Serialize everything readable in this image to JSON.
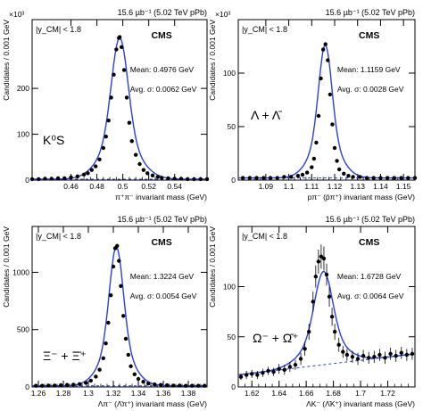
{
  "chart_data": [
    {
      "type": "scatter",
      "lumi_label": "15.6 µb⁻¹ (5.02 TeV pPb)",
      "cms_label": "CMS",
      "rapidity_label": "|y_CM| < 1.8",
      "particle_label": "K⁰S",
      "mean_label": "Mean: 0.4976 GeV",
      "sigma_label": "Avg. σ: 0.0062 GeV",
      "xlabel": "π⁺π⁻ invariant mass (GeV)",
      "ylabel": "Candidates / 0.001 GeV",
      "y_multiplier": "×10³",
      "xlim": [
        0.43,
        0.565
      ],
      "ylim": [
        0,
        350
      ],
      "x_ticks": [
        "0.46",
        "0.48",
        "0.5",
        "0.52",
        "0.54"
      ],
      "y_ticks": [
        "100",
        "200"
      ],
      "peak": {
        "mean": 0.4976,
        "sigma": 0.0062,
        "height": 310,
        "background": 2
      },
      "series": [
        {
          "name": "data",
          "x": [
            0.43,
            0.435,
            0.44,
            0.445,
            0.45,
            0.455,
            0.46,
            0.465,
            0.47,
            0.473,
            0.476,
            0.479,
            0.482,
            0.485,
            0.487,
            0.489,
            0.491,
            0.493,
            0.495,
            0.497,
            0.4976,
            0.499,
            0.501,
            0.503,
            0.505,
            0.507,
            0.51,
            0.513,
            0.516,
            0.519,
            0.523,
            0.527,
            0.53,
            0.535,
            0.54,
            0.545,
            0.55,
            0.555,
            0.56,
            0.565
          ],
          "y": [
            2,
            2,
            3,
            3,
            4,
            4,
            6,
            8,
            12,
            15,
            22,
            30,
            45,
            70,
            95,
            130,
            180,
            230,
            285,
            310,
            312,
            290,
            240,
            180,
            125,
            85,
            55,
            35,
            22,
            15,
            10,
            7,
            5,
            4,
            3,
            3,
            2,
            2,
            2,
            2
          ]
        }
      ]
    },
    {
      "type": "scatter",
      "lumi_label": "15.6 µb⁻¹ (5.02 TeV pPb)",
      "cms_label": "CMS",
      "rapidity_label": "|y_CM| < 1.8",
      "particle_label": "Λ + Λ̄",
      "mean_label": "Mean: 1.1159 GeV",
      "sigma_label": "Avg. σ: 0.0028 GeV",
      "xlabel": "pπ⁻ (p̄π⁺) invariant mass (GeV)",
      "ylabel": "Candidates / 0.001 GeV",
      "y_multiplier": "×10³",
      "xlim": [
        1.078,
        1.155
      ],
      "ylim": [
        0,
        150
      ],
      "x_ticks": [
        "1.09",
        "1.1",
        "1.11",
        "1.12",
        "1.13",
        "1.14",
        "1.15"
      ],
      "y_ticks": [
        "50",
        "100"
      ],
      "peak": {
        "mean": 1.1159,
        "sigma": 0.0028,
        "height": 126,
        "background": 2
      },
      "series": [
        {
          "name": "data",
          "x": [
            1.08,
            1.083,
            1.086,
            1.089,
            1.092,
            1.095,
            1.098,
            1.101,
            1.104,
            1.106,
            1.108,
            1.11,
            1.111,
            1.112,
            1.113,
            1.114,
            1.115,
            1.116,
            1.117,
            1.118,
            1.119,
            1.12,
            1.121,
            1.122,
            1.124,
            1.126,
            1.128,
            1.131,
            1.134,
            1.137,
            1.14,
            1.143,
            1.146,
            1.149,
            1.152,
            1.155
          ],
          "y": [
            2,
            2,
            2,
            2,
            2,
            2,
            3,
            3,
            4,
            5,
            7,
            12,
            20,
            35,
            60,
            95,
            122,
            127,
            112,
            80,
            52,
            30,
            18,
            10,
            6,
            4,
            3,
            3,
            2,
            2,
            2,
            2,
            2,
            2,
            2,
            2
          ]
        }
      ]
    },
    {
      "type": "scatter",
      "lumi_label": "15.6 µb⁻¹ (5.02 TeV pPb)",
      "cms_label": "CMS",
      "rapidity_label": "|y_CM| < 1.8",
      "particle_label": "Ξ⁻ + Ξ̄⁺",
      "mean_label": "Mean: 1.3224 GeV",
      "sigma_label": "Avg. σ: 0.0054 GeV",
      "xlabel": "Λπ⁻ (Λ̄π⁺) invariant mass (GeV)",
      "ylabel": "Candidates / 0.001 GeV",
      "y_multiplier": "",
      "xlim": [
        1.255,
        1.395
      ],
      "ylim": [
        0,
        1400
      ],
      "x_ticks": [
        "1.26",
        "1.28",
        "1.3",
        "1.32",
        "1.34",
        "1.36",
        "1.38"
      ],
      "y_ticks": [
        "500",
        "1000"
      ],
      "peak": {
        "mean": 1.3224,
        "sigma": 0.0054,
        "height": 1220,
        "background": 10
      },
      "series": [
        {
          "name": "data",
          "x": [
            1.258,
            1.263,
            1.268,
            1.273,
            1.278,
            1.283,
            1.288,
            1.293,
            1.298,
            1.302,
            1.306,
            1.309,
            1.312,
            1.314,
            1.316,
            1.318,
            1.32,
            1.3215,
            1.323,
            1.3245,
            1.326,
            1.328,
            1.33,
            1.332,
            1.334,
            1.337,
            1.34,
            1.344,
            1.348,
            1.353,
            1.358,
            1.363,
            1.368,
            1.373,
            1.378,
            1.383,
            1.388,
            1.393
          ],
          "y": [
            10,
            10,
            12,
            12,
            15,
            18,
            20,
            25,
            35,
            55,
            90,
            150,
            250,
            380,
            560,
            800,
            1050,
            1210,
            1230,
            1100,
            880,
            620,
            420,
            280,
            180,
            110,
            70,
            45,
            30,
            22,
            18,
            15,
            12,
            12,
            10,
            10,
            10,
            10
          ]
        }
      ]
    },
    {
      "type": "scatter",
      "lumi_label": "15.6 µb⁻¹ (5.02 TeV pPb)",
      "cms_label": "CMS",
      "rapidity_label": "|y_CM| < 1.8",
      "particle_label": "Ω⁻ + Ω̄⁺",
      "mean_label": "Mean: 1.6728 GeV",
      "sigma_label": "Avg. σ: 0.0064 GeV",
      "xlabel": "ΛK⁻ (Λ̄K⁺) invariant mass (GeV)",
      "ylabel": "Candidates / 0.001 GeV",
      "y_multiplier": "",
      "xlim": [
        1.61,
        1.74
      ],
      "ylim": [
        0,
        160
      ],
      "x_ticks": [
        "1.62",
        "1.64",
        "1.66",
        "1.68",
        "1.7",
        "1.72"
      ],
      "y_ticks": [
        "50",
        "100"
      ],
      "peak": {
        "mean": 1.6728,
        "sigma": 0.0064,
        "height": 115,
        "background_start": 12,
        "background_end": 33
      },
      "series": [
        {
          "name": "data",
          "x": [
            1.612,
            1.616,
            1.62,
            1.624,
            1.628,
            1.632,
            1.636,
            1.64,
            1.644,
            1.648,
            1.652,
            1.656,
            1.659,
            1.662,
            1.665,
            1.667,
            1.669,
            1.671,
            1.673,
            1.675,
            1.677,
            1.679,
            1.681,
            1.684,
            1.687,
            1.69,
            1.694,
            1.698,
            1.702,
            1.706,
            1.71,
            1.714,
            1.718,
            1.722,
            1.726,
            1.73,
            1.734,
            1.738
          ],
          "y": [
            10,
            12,
            13,
            12,
            14,
            16,
            15,
            18,
            17,
            20,
            22,
            28,
            38,
            55,
            85,
            110,
            125,
            130,
            128,
            112,
            90,
            70,
            55,
            42,
            35,
            32,
            30,
            28,
            31,
            29,
            30,
            32,
            29,
            33,
            31,
            34,
            32,
            33
          ],
          "err": [
            3,
            4,
            4,
            4,
            4,
            4,
            4,
            5,
            5,
            5,
            5,
            6,
            7,
            8,
            10,
            11,
            12,
            12,
            12,
            11,
            10,
            9,
            8,
            7,
            6,
            6,
            6,
            6,
            6,
            6,
            6,
            6,
            6,
            6,
            6,
            6,
            6,
            6
          ]
        }
      ]
    }
  ],
  "colors": {
    "data": "#000000",
    "fit": "#2b3fd8",
    "background": "#2b3fd8",
    "axis": "#000000"
  }
}
